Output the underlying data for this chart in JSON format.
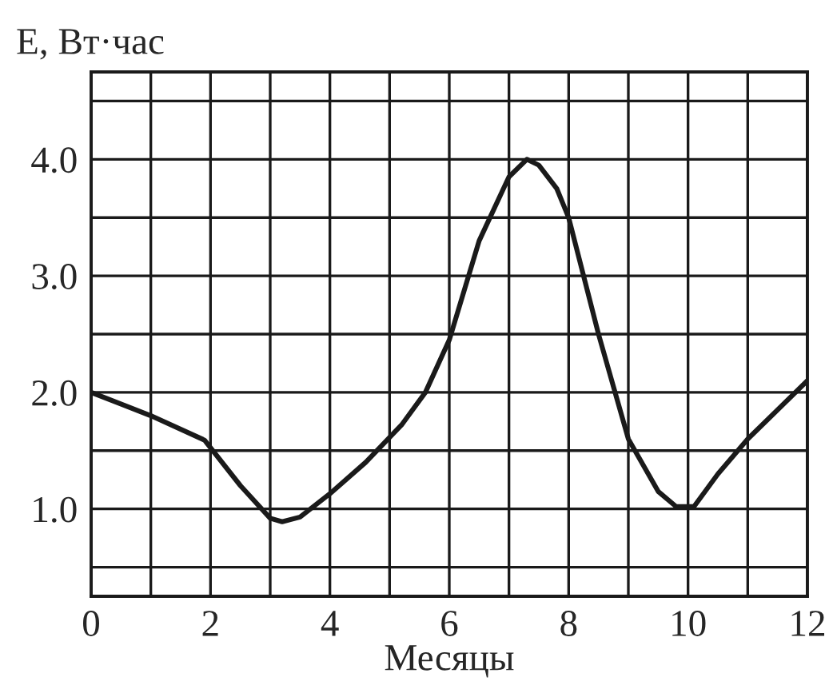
{
  "chart_data": {
    "type": "line",
    "xlabel": "Месяцы",
    "ylabel": "E, Вт·час",
    "x": [
      0,
      1,
      1.9,
      2.5,
      3.0,
      3.2,
      3.5,
      4,
      4.6,
      5.2,
      5.6,
      6,
      6.5,
      7,
      7.3,
      7.5,
      7.8,
      8.0,
      8.5,
      9,
      9.5,
      9.8,
      10.1,
      10.5,
      11,
      12
    ],
    "series": [
      {
        "color": "#1a1a1a",
        "values": [
          2.0,
          1.8,
          1.59,
          1.2,
          0.92,
          0.89,
          0.93,
          1.13,
          1.4,
          1.72,
          2.0,
          2.45,
          3.3,
          3.85,
          4.0,
          3.95,
          3.75,
          3.5,
          2.5,
          1.6,
          1.15,
          1.02,
          1.02,
          1.3,
          1.6,
          2.1
        ]
      }
    ],
    "xlim": [
      0,
      12
    ],
    "ylim": [
      0.25,
      4.75
    ],
    "xticks": [
      0,
      {
        "value": 1,
        "label": null
      },
      2,
      {
        "value": 3,
        "label": null
      },
      4,
      {
        "value": 5,
        "label": null
      },
      6,
      {
        "value": 7,
        "label": null
      },
      8,
      {
        "value": 9,
        "label": null
      },
      10,
      {
        "value": 11,
        "label": null
      },
      12
    ],
    "yticks": [
      {
        "value": 0.5,
        "label": null
      },
      {
        "value": 1.0,
        "label": "1.0"
      },
      {
        "value": 1.5,
        "label": null
      },
      {
        "value": 2.0,
        "label": "2.0"
      },
      {
        "value": 2.5,
        "label": null
      },
      {
        "value": 3.0,
        "label": "3.0"
      },
      {
        "value": 3.5,
        "label": null
      },
      {
        "value": 4.0,
        "label": "4.0"
      },
      {
        "value": 4.5,
        "label": null
      }
    ],
    "grid": true,
    "line_style": "solid"
  }
}
